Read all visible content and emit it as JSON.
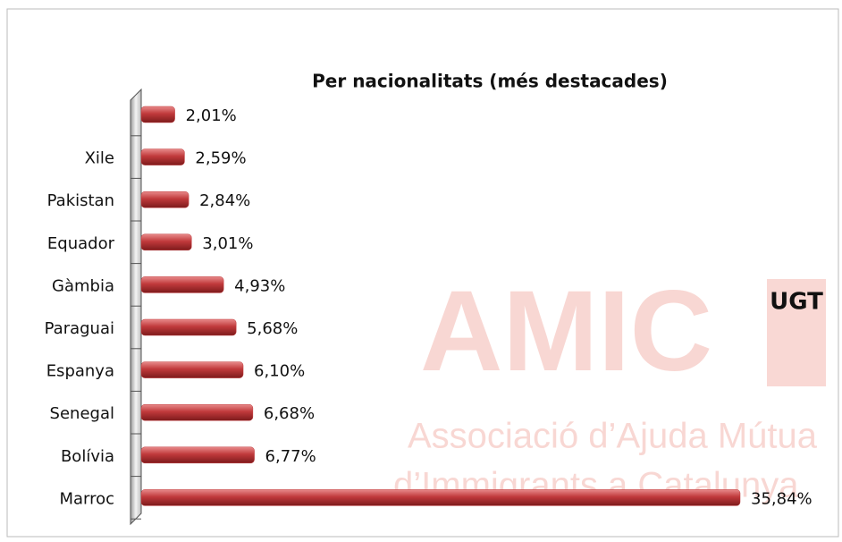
{
  "chart_data": {
    "type": "hbar",
    "title": "Per nacionalitats (més destacades)",
    "categories": [
      null,
      "Xile",
      "Pakistan",
      "Equador",
      "Gàmbia",
      "Paraguai",
      "Espanya",
      "Senegal",
      "Bolívia",
      "Marroc"
    ],
    "values": [
      2.01,
      2.59,
      2.84,
      3.01,
      4.93,
      5.68,
      6.1,
      6.68,
      6.77,
      35.84
    ],
    "value_labels": [
      "2,01%",
      "2,59%",
      "2,84%",
      "3,01%",
      "4,93%",
      "5,68%",
      "6,10%",
      "6,68%",
      "6,77%",
      "35,84%"
    ],
    "color": "#c0393b",
    "watermark": {
      "logo": "AMIC",
      "union": "UGT",
      "line1": "Associació d’Ajuda Mútua",
      "line2": "d’Immigrants a Catalunya"
    }
  }
}
